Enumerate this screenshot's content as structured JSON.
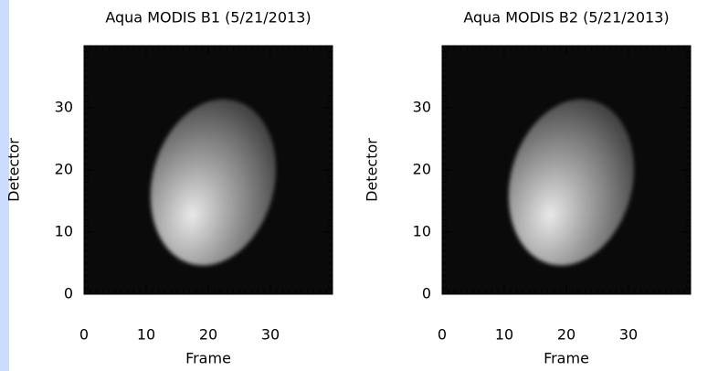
{
  "chart_data": [
    {
      "type": "image",
      "title": "Aqua MODIS B1 (5/21/2013)",
      "x_label": "Frame",
      "y_label": "Detector",
      "xlim": [
        0,
        40
      ],
      "ylim": [
        0,
        40
      ],
      "xticks": [
        0,
        10,
        20,
        30
      ],
      "yticks": [
        0,
        10,
        20,
        30
      ],
      "minor_tick_step": 1
    },
    {
      "type": "image",
      "title": "Aqua MODIS B2 (5/21/2013)",
      "x_label": "Frame",
      "y_label": "Detector",
      "xlim": [
        0,
        40
      ],
      "ylim": [
        0,
        40
      ],
      "xticks": [
        0,
        10,
        20,
        30
      ],
      "yticks": [
        0,
        10,
        20,
        30
      ],
      "minor_tick_step": 1
    }
  ]
}
